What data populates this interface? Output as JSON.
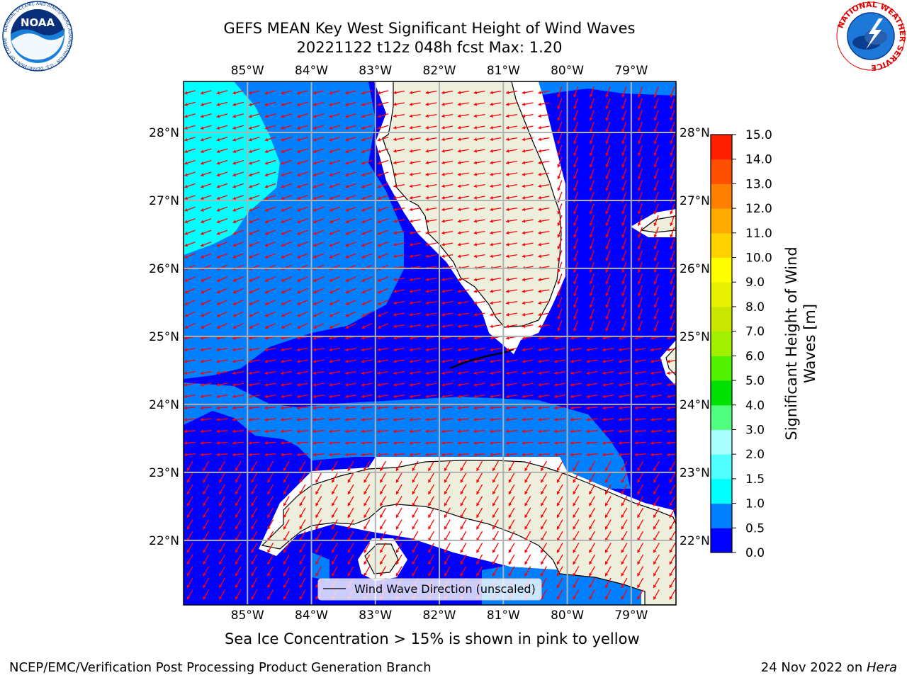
{
  "title": {
    "line1": "GEFS MEAN Key West Significant Height of Wind Waves",
    "line2": "20221122 t12z 048h fcst   Max: 1.20"
  },
  "logos": {
    "noaa": "NOAA",
    "nws": "NATIONAL WEATHER SERVICE",
    "noaa_ring": "NATIONAL OCEANIC AND ATMOSPHERIC ADMINISTRATION · U.S. DEPARTMENT OF COMMERCE"
  },
  "map": {
    "lon_labels": [
      "85°W",
      "84°W",
      "83°W",
      "82°W",
      "81°W",
      "80°W",
      "79°W"
    ],
    "lat_labels": [
      "28°N",
      "27°N",
      "26°N",
      "25°N",
      "24°N",
      "23°N",
      "22°N"
    ],
    "lon_values": [
      -85,
      -84,
      -83,
      -82,
      -81,
      -80,
      -79
    ],
    "lat_values": [
      28,
      27,
      26,
      25,
      24,
      23,
      22
    ],
    "extent": {
      "lon_min": -86.0,
      "lon_max": -78.3,
      "lat_min": 21.05,
      "lat_max": 28.75
    },
    "legend_label": "Wind Wave Direction (unscaled)",
    "colors": {
      "ocean_low": "#0000ff",
      "ocean_mid": "#0080ff",
      "ocean_high": "#00ffff",
      "land": "#eeeedd",
      "arrow": "#ff0000",
      "grid": "#b0b0b0"
    }
  },
  "colorbar": {
    "label": "Significant Height of Wind Waves [m]",
    "label_line1": "Significant Height of Wind",
    "label_line2": "Waves [m]",
    "ticks": [
      "0.0",
      "0.5",
      "1.0",
      "1.5",
      "2.0",
      "3.0",
      "4.0",
      "5.0",
      "6.0",
      "7.0",
      "8.0",
      "9.0",
      "10.0",
      "11.0",
      "12.0",
      "13.0",
      "14.0",
      "15.0"
    ],
    "colors": [
      "#0000ff",
      "#0080ff",
      "#00ffff",
      "#50ffff",
      "#aaffff",
      "#50ff80",
      "#00e000",
      "#50f000",
      "#a0f000",
      "#c8e600",
      "#e6f000",
      "#ffff00",
      "#ffd200",
      "#ffaa00",
      "#ff8000",
      "#ff5000",
      "#ff2000",
      "#ff0000"
    ]
  },
  "sea_ice_note": "Sea Ice Concentration > 15% is shown in pink to yellow",
  "footer": {
    "left": "NCEP/EMC/Verification Post Processing Product Generation Branch",
    "right_prefix": "24 Nov 2022 on ",
    "right_host": "Hera"
  }
}
